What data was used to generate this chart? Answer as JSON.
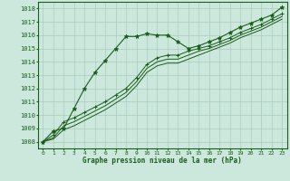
{
  "title": "Graphe pression niveau de la mer (hPa)",
  "bg_color": "#cce8dc",
  "grid_color": "#aaccbc",
  "line_color": "#1a5c1a",
  "marker_color": "#1a5c1a",
  "ylim": [
    1007.5,
    1018.5
  ],
  "xlim": [
    -0.5,
    23.5
  ],
  "yticks": [
    1008,
    1009,
    1010,
    1011,
    1012,
    1013,
    1014,
    1015,
    1016,
    1017,
    1018
  ],
  "xticks": [
    0,
    1,
    2,
    3,
    4,
    5,
    6,
    7,
    8,
    9,
    10,
    11,
    12,
    13,
    14,
    15,
    16,
    17,
    18,
    19,
    20,
    21,
    22,
    23
  ],
  "series1": [
    1008.0,
    1008.8,
    1009.0,
    1010.5,
    1012.0,
    1013.2,
    1014.1,
    1015.0,
    1015.9,
    1015.9,
    1016.1,
    1016.0,
    1016.0,
    1015.5,
    1015.0,
    1015.2,
    1015.5,
    1015.8,
    1016.2,
    1016.6,
    1016.9,
    1017.2,
    1017.5,
    1018.1
  ],
  "series2": [
    1008.0,
    1008.5,
    1009.5,
    1009.8,
    1010.2,
    1010.6,
    1011.0,
    1011.5,
    1012.0,
    1012.8,
    1013.8,
    1014.3,
    1014.5,
    1014.5,
    1014.8,
    1015.0,
    1015.2,
    1015.5,
    1015.8,
    1016.2,
    1016.5,
    1016.8,
    1017.2,
    1017.6
  ],
  "series3": [
    1008.0,
    1008.3,
    1009.2,
    1009.5,
    1009.9,
    1010.3,
    1010.7,
    1011.2,
    1011.7,
    1012.5,
    1013.5,
    1014.0,
    1014.2,
    1014.2,
    1014.5,
    1014.8,
    1015.0,
    1015.3,
    1015.6,
    1016.0,
    1016.3,
    1016.6,
    1017.0,
    1017.4
  ],
  "series4": [
    1008.0,
    1008.2,
    1008.9,
    1009.2,
    1009.6,
    1010.0,
    1010.4,
    1010.9,
    1011.4,
    1012.2,
    1013.2,
    1013.7,
    1013.9,
    1013.9,
    1014.2,
    1014.5,
    1014.8,
    1015.1,
    1015.4,
    1015.8,
    1016.1,
    1016.4,
    1016.8,
    1017.2
  ]
}
